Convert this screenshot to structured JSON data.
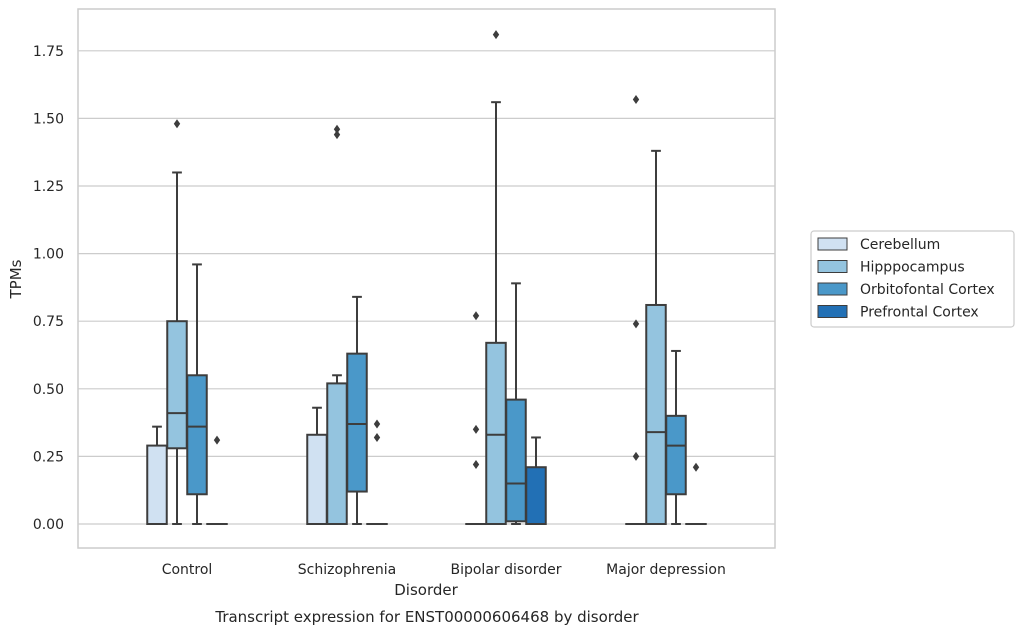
{
  "chart_data": {
    "type": "box",
    "caption": "Transcript expression for ENST00000606468 by disorder",
    "xlabel": "Disorder",
    "ylabel": "TPMs",
    "ylim": [
      -0.09,
      1.9
    ],
    "yticks": [
      "0.00",
      "0.25",
      "0.50",
      "0.75",
      "1.00",
      "1.25",
      "1.50",
      "1.75"
    ],
    "grid": "horizontal",
    "legend_position": "right",
    "categories": [
      "Control",
      "Schizophrenia",
      "Bipolar disorder",
      "Major depression"
    ],
    "series": [
      {
        "name": "Cerebellum",
        "color": "#d0e1f2",
        "boxes": [
          {
            "whislo": 0.0,
            "q1": 0.0,
            "med": 0.0,
            "q3": 0.29,
            "whishi": 0.36,
            "fliers": []
          },
          {
            "whislo": 0.0,
            "q1": 0.0,
            "med": 0.0,
            "q3": 0.33,
            "whishi": 0.43,
            "fliers": []
          },
          {
            "whislo": 0.0,
            "q1": 0.0,
            "med": 0.0,
            "q3": 0.0,
            "whishi": 0.0,
            "fliers": [
              0.22,
              0.35,
              0.77
            ]
          },
          {
            "whislo": 0.0,
            "q1": 0.0,
            "med": 0.0,
            "q3": 0.0,
            "whishi": 0.0,
            "fliers": [
              0.25,
              0.74,
              1.57
            ]
          }
        ]
      },
      {
        "name": "Hipppocampus",
        "color": "#94c4df",
        "boxes": [
          {
            "whislo": 0.0,
            "q1": 0.28,
            "med": 0.41,
            "q3": 0.75,
            "whishi": 1.3,
            "fliers": [
              1.48
            ]
          },
          {
            "whislo": 0.0,
            "q1": 0.0,
            "med": 0.0,
            "q3": 0.52,
            "whishi": 0.55,
            "fliers": [
              1.44,
              1.46
            ]
          },
          {
            "whislo": 0.0,
            "q1": 0.0,
            "med": 0.33,
            "q3": 0.67,
            "whishi": 1.56,
            "fliers": [
              1.81
            ]
          },
          {
            "whislo": 0.0,
            "q1": 0.0,
            "med": 0.34,
            "q3": 0.81,
            "whishi": 1.38,
            "fliers": []
          }
        ]
      },
      {
        "name": "Orbitofontal Cortex",
        "color": "#4a98c9",
        "boxes": [
          {
            "whislo": 0.0,
            "q1": 0.11,
            "med": 0.36,
            "q3": 0.55,
            "whishi": 0.96,
            "fliers": []
          },
          {
            "whislo": 0.0,
            "q1": 0.12,
            "med": 0.37,
            "q3": 0.63,
            "whishi": 0.84,
            "fliers": []
          },
          {
            "whislo": 0.0,
            "q1": 0.01,
            "med": 0.15,
            "q3": 0.46,
            "whishi": 0.89,
            "fliers": []
          },
          {
            "whislo": 0.0,
            "q1": 0.11,
            "med": 0.29,
            "q3": 0.4,
            "whishi": 0.64,
            "fliers": []
          }
        ]
      },
      {
        "name": "Prefrontal Cortex",
        "color": "#2270b5",
        "boxes": [
          {
            "whislo": 0.0,
            "q1": 0.0,
            "med": 0.0,
            "q3": 0.0,
            "whishi": 0.0,
            "fliers": [
              0.31
            ]
          },
          {
            "whislo": 0.0,
            "q1": 0.0,
            "med": 0.0,
            "q3": 0.0,
            "whishi": 0.0,
            "fliers": [
              0.32,
              0.37
            ]
          },
          {
            "whislo": 0.0,
            "q1": 0.0,
            "med": 0.0,
            "q3": 0.21,
            "whishi": 0.32,
            "fliers": []
          },
          {
            "whislo": 0.0,
            "q1": 0.0,
            "med": 0.0,
            "q3": 0.0,
            "whishi": 0.0,
            "fliers": [
              0.21
            ]
          }
        ]
      }
    ]
  }
}
